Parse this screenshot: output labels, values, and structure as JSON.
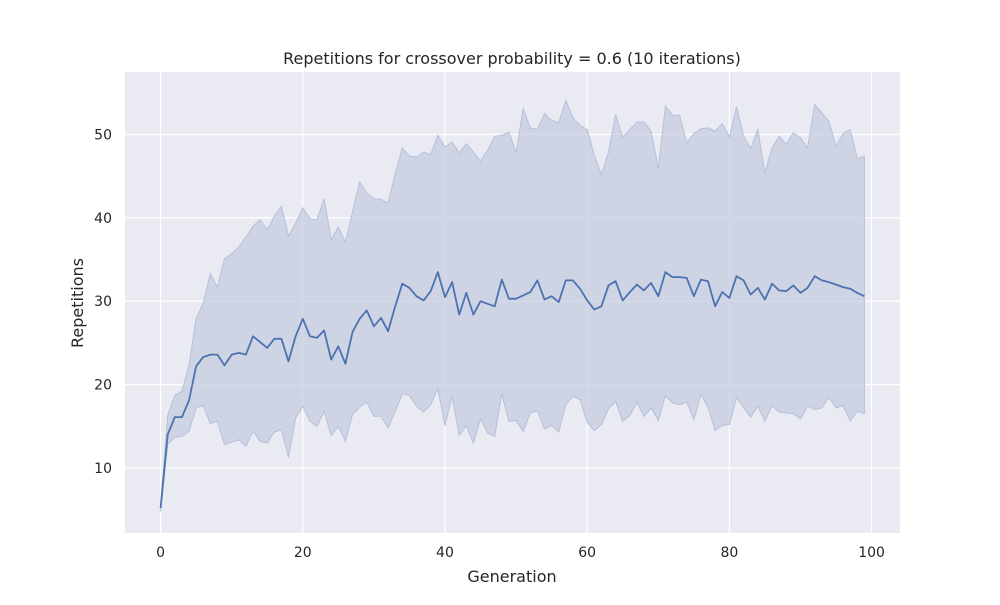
{
  "chart_data": {
    "type": "line",
    "title": "Repetitions for crossover probability = 0.6 (10 iterations)",
    "xlabel": "Generation",
    "ylabel": "Repetitions",
    "xlim": [
      -5,
      104
    ],
    "ylim": [
      2.2,
      57.5
    ],
    "xticks": [
      0,
      20,
      40,
      60,
      80,
      100
    ],
    "yticks": [
      10,
      20,
      30,
      40,
      50
    ],
    "grid": true,
    "legend": "none",
    "colors": {
      "background": "#eaeaf2",
      "grid": "#ffffff",
      "line": "#4c72b0",
      "band": "#c5cce0",
      "band_edge": "#b6c0da"
    },
    "series": [
      {
        "x": [
          0,
          1,
          2,
          3,
          4,
          5,
          6,
          7,
          8,
          9,
          10,
          11,
          12,
          13,
          14,
          15,
          16,
          17,
          18,
          19,
          20,
          21,
          22,
          23,
          24,
          25,
          26,
          27,
          28,
          29,
          30,
          31,
          32,
          33,
          34,
          35,
          36,
          37,
          38,
          39,
          40,
          41,
          42,
          43,
          44,
          45,
          46,
          47,
          48,
          49,
          50,
          51,
          52,
          53,
          54,
          55,
          56,
          57,
          58,
          59,
          60,
          61,
          62,
          63,
          64,
          65,
          66,
          67,
          68,
          69,
          70,
          71,
          72,
          73,
          74,
          75,
          76,
          77,
          78,
          79,
          80,
          81,
          82,
          83,
          84,
          85,
          86,
          87,
          88,
          89,
          90,
          91,
          92,
          93,
          94,
          95,
          96,
          97,
          98,
          99
        ],
        "values": [
          5.2,
          14.0,
          16.1,
          16.1,
          18.1,
          22.2,
          23.3,
          23.6,
          23.6,
          22.3,
          23.6,
          23.8,
          23.6,
          25.8,
          25.1,
          24.4,
          25.5,
          25.5,
          22.8,
          25.8,
          27.9,
          25.8,
          25.6,
          26.5,
          23.0,
          24.6,
          22.5,
          26.3,
          27.9,
          28.9,
          27.0,
          28.0,
          26.4,
          29.4,
          32.1,
          31.6,
          30.6,
          30.1,
          31.2,
          33.5,
          30.5,
          32.3,
          28.4,
          31.0,
          28.4,
          30.0,
          29.7,
          29.4,
          32.6,
          30.3,
          30.3,
          30.7,
          31.1,
          32.5,
          30.2,
          30.6,
          29.9,
          32.5,
          32.5,
          31.5,
          30.1,
          29.0,
          29.4,
          31.9,
          32.4,
          30.1,
          31.1,
          32.0,
          31.3,
          32.2,
          30.6,
          33.5,
          32.9,
          32.9,
          32.8,
          30.6,
          32.6,
          32.4,
          29.4,
          31.1,
          30.4,
          33.0,
          32.5,
          30.8,
          31.6,
          30.2,
          32.1,
          31.3,
          31.2,
          31.9,
          31.0,
          31.6,
          33.0,
          32.5,
          32.3,
          32.0,
          31.7,
          31.5,
          31.0,
          30.6
        ],
        "lower": [
          4.8,
          12.8,
          13.7,
          13.8,
          14.4,
          17.2,
          17.5,
          15.3,
          15.6,
          12.8,
          13.1,
          13.4,
          12.6,
          14.4,
          13.2,
          13.0,
          14.3,
          14.6,
          11.3,
          16.0,
          17.4,
          15.6,
          15.0,
          16.8,
          13.9,
          15.0,
          13.2,
          16.4,
          17.3,
          17.9,
          16.2,
          16.2,
          14.8,
          16.8,
          18.9,
          18.7,
          17.4,
          16.7,
          17.6,
          19.5,
          15.1,
          18.6,
          13.9,
          15.1,
          13.0,
          15.9,
          14.2,
          13.8,
          18.9,
          15.6,
          15.7,
          14.4,
          16.6,
          16.9,
          14.7,
          15.1,
          14.3,
          17.6,
          18.6,
          18.2,
          15.5,
          14.5,
          15.2,
          17.1,
          18.0,
          15.6,
          16.3,
          17.9,
          16.2,
          17.2,
          15.7,
          18.7,
          17.8,
          17.6,
          17.9,
          15.8,
          18.8,
          17.3,
          14.5,
          15.1,
          15.2,
          18.5,
          17.2,
          16.1,
          17.4,
          15.6,
          17.5,
          16.7,
          16.6,
          16.5,
          15.9,
          17.4,
          17.0,
          17.2,
          18.5,
          17.2,
          17.5,
          15.6,
          16.8,
          16.5
        ],
        "upper": [
          5.6,
          16.3,
          18.7,
          19.2,
          22.3,
          27.9,
          29.8,
          33.3,
          31.7,
          35.1,
          35.7,
          36.5,
          37.7,
          39.0,
          39.8,
          38.6,
          40.2,
          41.4,
          37.8,
          39.4,
          41.2,
          39.9,
          39.8,
          42.3,
          37.4,
          38.9,
          37.1,
          40.7,
          44.3,
          43.0,
          42.3,
          42.2,
          41.8,
          45.3,
          48.4,
          47.4,
          47.3,
          47.9,
          47.6,
          49.9,
          48.5,
          49.1,
          47.8,
          48.9,
          47.9,
          46.8,
          48.1,
          49.8,
          49.9,
          50.3,
          47.8,
          53.1,
          50.8,
          50.6,
          52.5,
          51.7,
          51.4,
          54.1,
          52.0,
          51.1,
          50.6,
          47.5,
          45.2,
          47.9,
          52.4,
          49.7,
          50.6,
          51.5,
          51.5,
          50.4,
          45.9,
          53.4,
          52.3,
          52.3,
          49.0,
          50.1,
          50.7,
          50.8,
          50.4,
          51.3,
          49.7,
          53.3,
          49.8,
          48.3,
          50.6,
          45.4,
          48.4,
          49.8,
          48.8,
          50.2,
          49.6,
          48.4,
          53.6,
          52.6,
          51.6,
          48.6,
          50.1,
          50.6,
          47.1,
          47.4
        ]
      }
    ]
  }
}
